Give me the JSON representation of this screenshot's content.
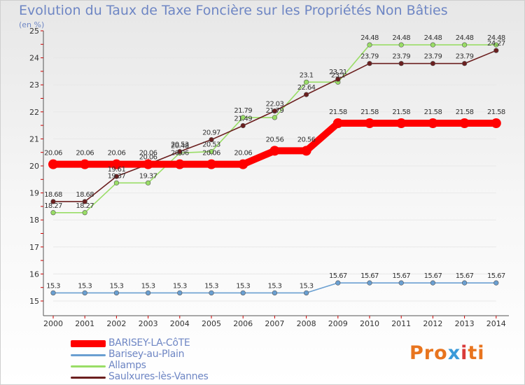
{
  "header": {
    "title": "Evolution du Taux de Taxe Foncière sur les Propriétés Non Bâties",
    "subtitle": "(en %)"
  },
  "chart_data": {
    "type": "line",
    "title": "Evolution du Taux de Taxe Foncière sur les Propriétés Non Bâties",
    "ylabel": "(en %)",
    "xlabel": "",
    "ylim": [
      15,
      25
    ],
    "yticks": [
      "15",
      "16",
      "17",
      "18",
      "19",
      "20",
      "21",
      "22",
      "23",
      "24",
      "25"
    ],
    "categories": [
      "2000",
      "2001",
      "2002",
      "2003",
      "2004",
      "2005",
      "2006",
      "2007",
      "2008",
      "2009",
      "2010",
      "2011",
      "2012",
      "2013",
      "2014"
    ],
    "series": [
      {
        "name": "BARISEY-LA-CôTE",
        "color": "#ff0000",
        "labels": [
          "20.06",
          "20.06",
          "20.06",
          "20.06",
          "20.06",
          "20.06",
          "20.06",
          "20.56",
          "20.56",
          "21.58",
          "21.58",
          "21.58",
          "21.58",
          "21.58",
          "21.58"
        ],
        "values": [
          20.06,
          20.06,
          20.06,
          20.06,
          20.06,
          20.06,
          20.06,
          20.56,
          20.56,
          21.58,
          21.58,
          21.58,
          21.58,
          21.58,
          21.58
        ]
      },
      {
        "name": "Barisey-au-Plain",
        "color": "#6a9fd1",
        "labels": [
          "15.3",
          "15.3",
          "15.3",
          "15.3",
          "15.3",
          "15.3",
          "15.3",
          "15.3",
          "15.3",
          "15.67",
          "15.67",
          "15.67",
          "15.67",
          "15.67",
          "15.67"
        ],
        "values": [
          15.3,
          15.3,
          15.3,
          15.3,
          15.3,
          15.3,
          15.3,
          15.3,
          15.3,
          15.67,
          15.67,
          15.67,
          15.67,
          15.67,
          15.67
        ]
      },
      {
        "name": "Allamps",
        "color": "#99dd66",
        "labels": [
          "18.27",
          "18.27",
          "19.37",
          "19.37",
          "20.48",
          "20.53",
          "21.79",
          "21.79",
          "23.1",
          "23.1",
          "24.48",
          "24.48",
          "24.48",
          "24.48",
          "24.48"
        ],
        "values": [
          18.27,
          18.27,
          19.37,
          19.37,
          20.48,
          20.53,
          21.79,
          21.79,
          23.1,
          23.1,
          24.48,
          24.48,
          24.48,
          24.48,
          24.48
        ]
      },
      {
        "name": "Saulxures-lès-Vannes",
        "color": "#6b1f1f",
        "labels": [
          "18.68",
          "18.68",
          "19.61",
          "20.06",
          "20.53",
          "20.97",
          "21.49",
          "22.03",
          "22.64",
          "23.21",
          "23.79",
          "23.79",
          "23.79",
          "23.79",
          "24.27"
        ],
        "values": [
          18.68,
          18.68,
          19.61,
          20.06,
          20.53,
          20.97,
          21.49,
          22.03,
          22.64,
          23.21,
          23.79,
          23.79,
          23.79,
          23.79,
          24.27
        ]
      }
    ]
  },
  "legend": {
    "items": [
      {
        "label": "BARISEY-LA-CôTE",
        "color": "#ff0000"
      },
      {
        "label": "Barisey-au-Plain",
        "color": "#6a9fd1"
      },
      {
        "label": "Allamps",
        "color": "#99dd66"
      },
      {
        "label": "Saulxures-lès-Vannes",
        "color": "#6b1f1f"
      }
    ]
  },
  "logo": {
    "text": "Proxiti"
  }
}
